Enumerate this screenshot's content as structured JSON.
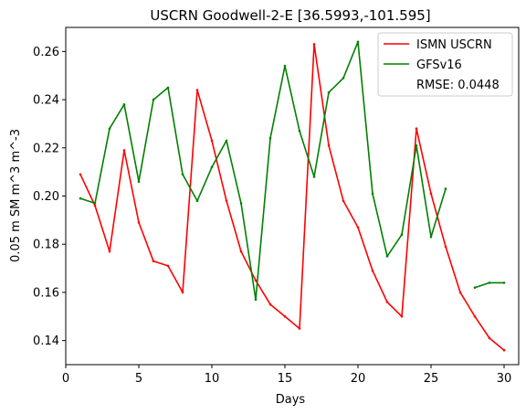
{
  "chart_data": {
    "type": "line",
    "title": "USCRN Goodwell-2-E [36.5993,-101.595]",
    "xlabel": "Days",
    "ylabel": "0.05 m SM m^3 m^-3",
    "xlim": [
      0,
      31
    ],
    "ylim": [
      0.13,
      0.27
    ],
    "xticks": [
      0,
      5,
      10,
      15,
      20,
      25,
      30
    ],
    "yticks": [
      0.14,
      0.16,
      0.18,
      0.2,
      0.22,
      0.24,
      0.26
    ],
    "ytick_labels": [
      "0.14",
      "0.16",
      "0.18",
      "0.20",
      "0.22",
      "0.24",
      "0.26"
    ],
    "grid": false,
    "legend_position": "top-right",
    "series": [
      {
        "name": "ISMN USCRN",
        "color": "#ff0000",
        "x": [
          1,
          2,
          3,
          4,
          5,
          6,
          7,
          8,
          9,
          10,
          11,
          12,
          13,
          14,
          15,
          16,
          17,
          18,
          19,
          20,
          21,
          22,
          23,
          24,
          25,
          26,
          27,
          28,
          29,
          30
        ],
        "y": [
          0.209,
          0.196,
          0.177,
          0.219,
          0.189,
          0.173,
          0.171,
          0.16,
          0.244,
          0.223,
          0.198,
          0.177,
          0.165,
          0.155,
          0.15,
          0.145,
          0.263,
          0.221,
          0.198,
          0.187,
          0.169,
          0.156,
          0.15,
          0.228,
          0.201,
          0.179,
          0.16,
          0.15,
          0.141,
          0.136
        ]
      },
      {
        "name": "GFSv16",
        "color": "#008000",
        "x": [
          1,
          2,
          3,
          4,
          5,
          6,
          7,
          8,
          9,
          10,
          11,
          12,
          13,
          14,
          15,
          16,
          17,
          18,
          19,
          20,
          21,
          22,
          23,
          24,
          25,
          26,
          27,
          28,
          29,
          30
        ],
        "y": [
          0.199,
          0.197,
          0.228,
          0.238,
          0.206,
          0.24,
          0.245,
          0.209,
          0.198,
          0.212,
          0.223,
          0.197,
          0.157,
          0.224,
          0.254,
          0.227,
          0.208,
          0.243,
          0.249,
          0.264,
          0.201,
          0.175,
          0.184,
          0.221,
          0.183,
          0.203,
          null,
          0.162,
          0.164,
          0.164
        ]
      }
    ],
    "annotations": [
      "RMSE: 0.0448"
    ]
  }
}
